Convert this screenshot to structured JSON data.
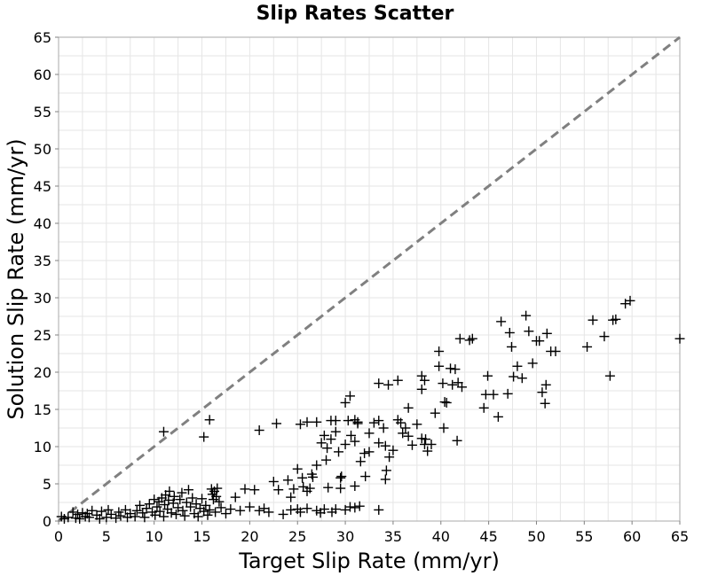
{
  "chart_data": {
    "type": "scatter",
    "title": "Slip Rates Scatter",
    "xlabel": "Target Slip Rate (mm/yr)",
    "ylabel": "Solution Slip Rate (mm/yr)",
    "xlim": [
      0,
      65
    ],
    "ylim": [
      0,
      65
    ],
    "xticks": [
      "0",
      "5",
      "10",
      "15",
      "20",
      "25",
      "30",
      "35",
      "40",
      "45",
      "50",
      "55",
      "60",
      "65"
    ],
    "yticks": [
      "0",
      "5",
      "10",
      "15",
      "20",
      "25",
      "30",
      "35",
      "40",
      "45",
      "50",
      "55",
      "60",
      "65"
    ],
    "grid": true,
    "legend": "none",
    "marker": "plus",
    "colors": {
      "marker": "#000000",
      "reference_line": "#808080",
      "grid": "#e6e6e6",
      "frame": "#a9a9a9"
    },
    "reference_line": {
      "style": "dashed",
      "x": [
        0,
        65
      ],
      "y": [
        0,
        65
      ]
    },
    "series": [
      {
        "points": [
          [
            0.3,
            0.6
          ],
          [
            0.6,
            0.3
          ],
          [
            1.0,
            0.5
          ],
          [
            1.5,
            1.2
          ],
          [
            1.8,
            0.4
          ],
          [
            2.0,
            0.9
          ],
          [
            2.2,
            0.3
          ],
          [
            2.5,
            1.1
          ],
          [
            2.8,
            0.6
          ],
          [
            3.0,
            1.0
          ],
          [
            3.2,
            0.5
          ],
          [
            3.5,
            1.4
          ],
          [
            4.0,
            0.8
          ],
          [
            4.3,
            0.3
          ],
          [
            4.5,
            1.3
          ],
          [
            5.0,
            0.5
          ],
          [
            5.2,
            1.5
          ],
          [
            5.5,
            0.9
          ],
          [
            6.0,
            0.4
          ],
          [
            6.3,
            1.2
          ],
          [
            6.5,
            0.7
          ],
          [
            7.0,
            1.5
          ],
          [
            7.2,
            0.5
          ],
          [
            7.5,
            1.0
          ],
          [
            8.0,
            0.6
          ],
          [
            8.2,
            1.4
          ],
          [
            8.5,
            2.1
          ],
          [
            8.8,
            1.1
          ],
          [
            9.0,
            0.5
          ],
          [
            9.2,
            1.7
          ],
          [
            9.5,
            2.3
          ],
          [
            9.8,
            1.2
          ],
          [
            10.0,
            2.9
          ],
          [
            10.1,
            0.8
          ],
          [
            10.3,
            1.9
          ],
          [
            10.5,
            2.6
          ],
          [
            10.6,
            1.3
          ],
          [
            10.8,
            3.1
          ],
          [
            11.0,
            0.6
          ],
          [
            11.1,
            2.2
          ],
          [
            11.2,
            3.5
          ],
          [
            11.4,
            1.6
          ],
          [
            11.5,
            2.8
          ],
          [
            11.6,
            4.0
          ],
          [
            11.8,
            1.1
          ],
          [
            12.0,
            2.4
          ],
          [
            12.1,
            3.3
          ],
          [
            12.3,
            0.9
          ],
          [
            12.5,
            1.8
          ],
          [
            12.7,
            2.9
          ],
          [
            12.9,
            3.8
          ],
          [
            13.0,
            1.4
          ],
          [
            13.2,
            0.7
          ],
          [
            13.4,
            2.5
          ],
          [
            13.6,
            4.2
          ],
          [
            13.8,
            1.9
          ],
          [
            14.0,
            3.1
          ],
          [
            14.2,
            1.0
          ],
          [
            14.4,
            2.3
          ],
          [
            14.6,
            0.6
          ],
          [
            14.8,
            1.7
          ],
          [
            15.0,
            3.0
          ],
          [
            15.2,
            1.3
          ],
          [
            15.4,
            2.1
          ],
          [
            15.6,
            0.8
          ],
          [
            15.8,
            1.5
          ],
          [
            16.0,
            4.3
          ],
          [
            16.1,
            3.6
          ],
          [
            16.2,
            2.9
          ],
          [
            16.3,
            4.0
          ],
          [
            16.4,
            1.2
          ],
          [
            16.5,
            3.3
          ],
          [
            16.6,
            4.4
          ],
          [
            16.8,
            2.6
          ],
          [
            17.0,
            1.8
          ],
          [
            17.5,
            1.0
          ],
          [
            18.0,
            1.6
          ],
          [
            18.5,
            3.2
          ],
          [
            19.0,
            1.4
          ],
          [
            19.5,
            4.3
          ],
          [
            20.0,
            1.9
          ],
          [
            20.5,
            4.2
          ],
          [
            21.0,
            1.4
          ],
          [
            21.5,
            1.7
          ],
          [
            22.0,
            1.2
          ],
          [
            22.5,
            5.3
          ],
          [
            23.0,
            4.2
          ],
          [
            23.5,
            0.9
          ],
          [
            24.0,
            5.5
          ],
          [
            24.3,
            1.5
          ],
          [
            24.6,
            4.3
          ],
          [
            25.0,
            1.6
          ],
          [
            25.3,
            1.2
          ],
          [
            25.6,
            4.6
          ],
          [
            26.0,
            1.7
          ],
          [
            26.3,
            4.4
          ],
          [
            26.6,
            5.9
          ],
          [
            27.0,
            1.4
          ],
          [
            27.4,
            1.1
          ],
          [
            27.8,
            1.6
          ],
          [
            28.2,
            4.5
          ],
          [
            28.6,
            1.2
          ],
          [
            29.0,
            1.6
          ],
          [
            29.5,
            5.8
          ],
          [
            30.0,
            1.5
          ],
          [
            30.5,
            1.9
          ],
          [
            31.0,
            1.8
          ],
          [
            31.5,
            2.0
          ],
          [
            33.5,
            1.5
          ],
          [
            25.0,
            7.0
          ],
          [
            25.5,
            5.8
          ],
          [
            26.0,
            4.0
          ],
          [
            26.5,
            6.3
          ],
          [
            27.0,
            7.5
          ],
          [
            27.5,
            10.5
          ],
          [
            28.0,
            8.2
          ],
          [
            28.5,
            11.0
          ],
          [
            29.0,
            12.0
          ],
          [
            29.3,
            9.3
          ],
          [
            29.6,
            6.0
          ],
          [
            30.0,
            10.3
          ],
          [
            30.3,
            13.5
          ],
          [
            30.6,
            11.5
          ],
          [
            31.0,
            10.7
          ],
          [
            31.3,
            13.3
          ],
          [
            31.6,
            8.0
          ],
          [
            32.0,
            9.1
          ],
          [
            32.5,
            11.8
          ],
          [
            33.0,
            13.2
          ],
          [
            33.5,
            10.5
          ],
          [
            34.0,
            12.5
          ],
          [
            34.3,
            6.8
          ],
          [
            34.6,
            8.6
          ],
          [
            35.0,
            9.5
          ],
          [
            35.5,
            13.6
          ],
          [
            36.0,
            11.8
          ],
          [
            36.3,
            12.5
          ],
          [
            36.6,
            11.4
          ],
          [
            37.0,
            10.2
          ],
          [
            37.5,
            13.0
          ],
          [
            38.0,
            11.1
          ],
          [
            38.3,
            10.3
          ],
          [
            38.6,
            9.4
          ],
          [
            39.0,
            10.3
          ],
          [
            27.0,
            13.3
          ],
          [
            26.0,
            13.3
          ],
          [
            28.5,
            13.5
          ],
          [
            29.0,
            13.5
          ],
          [
            31.0,
            13.6
          ],
          [
            33.5,
            13.5
          ],
          [
            35.8,
            13.2
          ],
          [
            30.0,
            15.9
          ],
          [
            30.5,
            16.8
          ],
          [
            33.5,
            18.5
          ],
          [
            34.5,
            18.3
          ],
          [
            35.5,
            18.9
          ],
          [
            38.0,
            19.5
          ],
          [
            38.3,
            18.9
          ],
          [
            38.0,
            17.7
          ],
          [
            39.8,
            20.8
          ],
          [
            39.8,
            22.8
          ],
          [
            40.2,
            18.5
          ],
          [
            40.4,
            16.0
          ],
          [
            40.6,
            15.9
          ],
          [
            41.0,
            20.5
          ],
          [
            41.2,
            18.3
          ],
          [
            41.5,
            20.4
          ],
          [
            41.8,
            18.6
          ],
          [
            42.0,
            24.5
          ],
          [
            42.2,
            18.0
          ],
          [
            43.0,
            24.3
          ],
          [
            43.3,
            24.5
          ],
          [
            44.5,
            15.2
          ],
          [
            44.7,
            17.0
          ],
          [
            44.9,
            19.5
          ],
          [
            45.5,
            17.0
          ],
          [
            46.0,
            14.0
          ],
          [
            46.3,
            26.8
          ],
          [
            47.0,
            17.1
          ],
          [
            47.2,
            25.3
          ],
          [
            47.4,
            23.4
          ],
          [
            47.6,
            19.4
          ],
          [
            48.0,
            20.8
          ],
          [
            48.5,
            19.2
          ],
          [
            48.9,
            27.6
          ],
          [
            49.2,
            25.5
          ],
          [
            49.6,
            21.2
          ],
          [
            50.0,
            24.2
          ],
          [
            50.3,
            24.2
          ],
          [
            50.6,
            17.3
          ],
          [
            50.9,
            15.8
          ],
          [
            51.1,
            25.2
          ],
          [
            51.5,
            22.8
          ],
          [
            52.0,
            22.8
          ],
          [
            51.0,
            18.3
          ],
          [
            55.3,
            23.4
          ],
          [
            55.9,
            27.0
          ],
          [
            57.1,
            24.8
          ],
          [
            57.7,
            19.5
          ],
          [
            58.0,
            27.0
          ],
          [
            58.3,
            27.1
          ],
          [
            59.3,
            29.2
          ],
          [
            59.8,
            29.6
          ],
          [
            65.0,
            24.5
          ],
          [
            41.7,
            10.8
          ],
          [
            40.3,
            12.5
          ],
          [
            11.0,
            12.0
          ],
          [
            15.2,
            11.3
          ],
          [
            15.8,
            13.6
          ],
          [
            21.0,
            12.2
          ],
          [
            22.8,
            13.1
          ],
          [
            25.3,
            13.0
          ],
          [
            28.1,
            9.8
          ],
          [
            31.3,
            13.1
          ],
          [
            32.5,
            9.3
          ],
          [
            34.2,
            10.1
          ],
          [
            36.6,
            15.2
          ],
          [
            39.4,
            14.5
          ],
          [
            38.4,
            11.0
          ],
          [
            34.2,
            5.6
          ],
          [
            32.1,
            6.0
          ],
          [
            29.5,
            4.4
          ],
          [
            31.0,
            4.7
          ],
          [
            27.8,
            11.5
          ],
          [
            24.3,
            3.2
          ]
        ]
      }
    ]
  }
}
